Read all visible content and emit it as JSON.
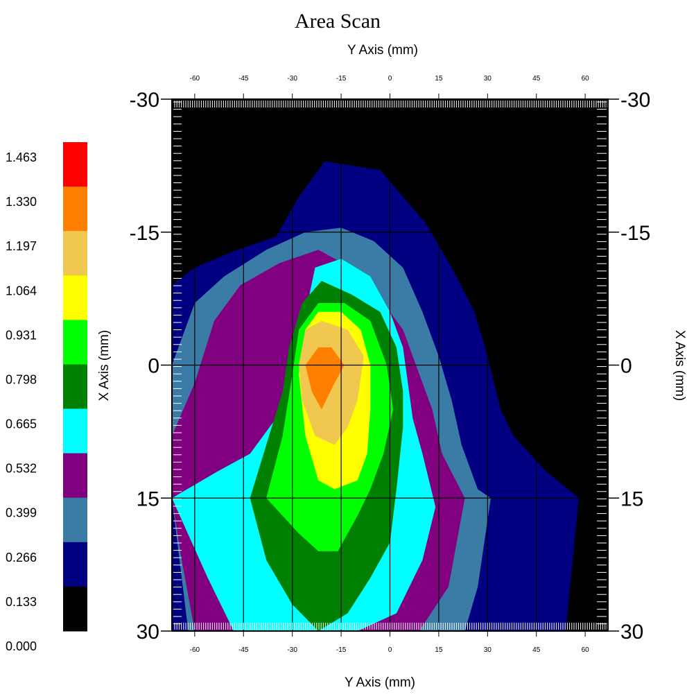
{
  "chart_data": {
    "type": "heatmap",
    "title": "Area Scan",
    "xlabel_top": "Y Axis (mm)",
    "xlabel_bottom": "Y Axis (mm)",
    "ylabel_left": "X Axis (mm)",
    "ylabel_right": "X Axis (mm)",
    "y_axis_ticks": [
      "-60",
      "-45",
      "-30",
      "-15",
      "0",
      "15",
      "30",
      "45",
      "60"
    ],
    "y_axis_tick_values": [
      -60,
      -45,
      -30,
      -15,
      0,
      15,
      30,
      45,
      60
    ],
    "y_axis_range": [
      -67,
      67
    ],
    "x_axis_ticks": [
      "-30",
      "-15",
      "0",
      "15",
      "30"
    ],
    "x_axis_tick_values": [
      -30,
      -15,
      0,
      15,
      30
    ],
    "x_axis_range": [
      -30,
      30
    ],
    "grid": true,
    "legend_position": "left",
    "legend_levels": [
      "1.463",
      "1.330",
      "1.197",
      "1.064",
      "0.931",
      "0.798",
      "0.665",
      "0.532",
      "0.399",
      "0.266",
      "0.133",
      "0.000"
    ],
    "legend_colors": [
      "#ff0000",
      "#ff8000",
      "#f0c850",
      "#ffff00",
      "#00ff00",
      "#008000",
      "#00ffff",
      "#800080",
      "#3a7ca5",
      "#000080",
      "#000000"
    ],
    "peak": {
      "y_mm": -17,
      "x_mm": 0,
      "value_range": "1.197-1.330"
    },
    "contours": [
      {
        "level": "0.133",
        "color": "#000080",
        "points": [
          [
            -67,
            -9
          ],
          [
            -60,
            -11
          ],
          [
            -47,
            -13
          ],
          [
            -35,
            -14.5
          ],
          [
            -28,
            -19
          ],
          [
            -20,
            -23
          ],
          [
            -3,
            -22
          ],
          [
            4,
            -19
          ],
          [
            11,
            -16
          ],
          [
            19,
            -11
          ],
          [
            26,
            -6
          ],
          [
            30,
            -1
          ],
          [
            34,
            5
          ],
          [
            38,
            8
          ],
          [
            48,
            12
          ],
          [
            58,
            15
          ],
          [
            54,
            30
          ],
          [
            -67,
            30
          ]
        ]
      },
      {
        "level": "0.266",
        "color": "#3a7ca5",
        "points": [
          [
            -67,
            0
          ],
          [
            -60,
            -7
          ],
          [
            -51,
            -10
          ],
          [
            -38,
            -13
          ],
          [
            -26,
            -15
          ],
          [
            -15,
            -15.5
          ],
          [
            -5,
            -14
          ],
          [
            4,
            -11
          ],
          [
            10,
            -6
          ],
          [
            15,
            -1
          ],
          [
            19,
            4
          ],
          [
            22,
            9
          ],
          [
            27,
            14
          ],
          [
            31,
            15
          ],
          [
            27,
            25
          ],
          [
            23,
            30
          ],
          [
            -62,
            30
          ],
          [
            -67,
            15
          ]
        ]
      },
      {
        "level": "0.399",
        "color": "#800080",
        "points": [
          [
            -67,
            8
          ],
          [
            -60,
            2
          ],
          [
            -54,
            -5
          ],
          [
            -46,
            -9
          ],
          [
            -34,
            -11.5
          ],
          [
            -22,
            -13
          ],
          [
            -12,
            -11
          ],
          [
            -4,
            -8
          ],
          [
            4,
            -4
          ],
          [
            9,
            1
          ],
          [
            13,
            5
          ],
          [
            16,
            10
          ],
          [
            23,
            15
          ],
          [
            18,
            25
          ],
          [
            9,
            30
          ],
          [
            -60,
            30
          ],
          [
            -64,
            22
          ],
          [
            -67,
            15
          ]
        ]
      },
      {
        "level": "0.532",
        "color": "#00ffff",
        "points": [
          [
            -67,
            15
          ],
          [
            -53,
            12
          ],
          [
            -43,
            10
          ],
          [
            -33,
            5
          ],
          [
            -27,
            -4
          ],
          [
            -23,
            -11
          ],
          [
            -15,
            -12
          ],
          [
            -6,
            -10
          ],
          [
            0,
            -6
          ],
          [
            4,
            -2
          ],
          [
            7,
            6
          ],
          [
            10,
            10
          ],
          [
            14,
            16
          ],
          [
            10,
            22
          ],
          [
            2,
            28
          ],
          [
            -10,
            30
          ],
          [
            -48,
            30
          ],
          [
            -56,
            24
          ]
        ]
      },
      {
        "level": "0.665",
        "color": "#008000",
        "points": [
          [
            -43,
            15
          ],
          [
            -38,
            9
          ],
          [
            -33,
            3
          ],
          [
            -31,
            -2
          ],
          [
            -27,
            -7
          ],
          [
            -21,
            -9.5
          ],
          [
            -12,
            -8
          ],
          [
            -3,
            -6
          ],
          [
            2,
            -2
          ],
          [
            4,
            3
          ],
          [
            4,
            7
          ],
          [
            2,
            14
          ],
          [
            0,
            20
          ],
          [
            -6,
            24
          ],
          [
            -13,
            28
          ],
          [
            -22,
            30
          ],
          [
            -30,
            27
          ],
          [
            -38,
            22
          ]
        ]
      },
      {
        "level": "0.798",
        "color": "#00ff00",
        "points": [
          [
            -38,
            15
          ],
          [
            -33,
            8
          ],
          [
            -30,
            1
          ],
          [
            -28,
            -4
          ],
          [
            -22,
            -7
          ],
          [
            -14,
            -7
          ],
          [
            -6,
            -5
          ],
          [
            -1,
            0
          ],
          [
            1,
            5
          ],
          [
            -2,
            10
          ],
          [
            -6,
            14
          ],
          [
            -10,
            17
          ],
          [
            -16,
            21
          ],
          [
            -22,
            21
          ],
          [
            -28,
            19
          ],
          [
            -33,
            17
          ]
        ]
      },
      {
        "level": "0.931",
        "color": "#ffff00",
        "points": [
          [
            -28,
            1
          ],
          [
            -26,
            -4
          ],
          [
            -22,
            -6
          ],
          [
            -15,
            -6
          ],
          [
            -9,
            -4
          ],
          [
            -6,
            0
          ],
          [
            -6,
            5
          ],
          [
            -7,
            10
          ],
          [
            -10,
            13
          ],
          [
            -17,
            14
          ],
          [
            -22,
            13
          ],
          [
            -26,
            8
          ]
        ]
      },
      {
        "level": "1.064",
        "color": "#f0c850",
        "points": [
          [
            -28,
            0
          ],
          [
            -26,
            -4
          ],
          [
            -21,
            -5
          ],
          [
            -13,
            -4
          ],
          [
            -8,
            -1
          ],
          [
            -10,
            4
          ],
          [
            -13,
            7
          ],
          [
            -17,
            9
          ],
          [
            -23,
            8
          ],
          [
            -27,
            4
          ]
        ]
      },
      {
        "level": "1.197",
        "color": "#ff8000",
        "points": [
          [
            -26,
            0
          ],
          [
            -22,
            -2
          ],
          [
            -18,
            -2
          ],
          [
            -14,
            0
          ],
          [
            -17,
            2
          ],
          [
            -21,
            5
          ],
          [
            -24,
            3
          ]
        ]
      }
    ]
  }
}
